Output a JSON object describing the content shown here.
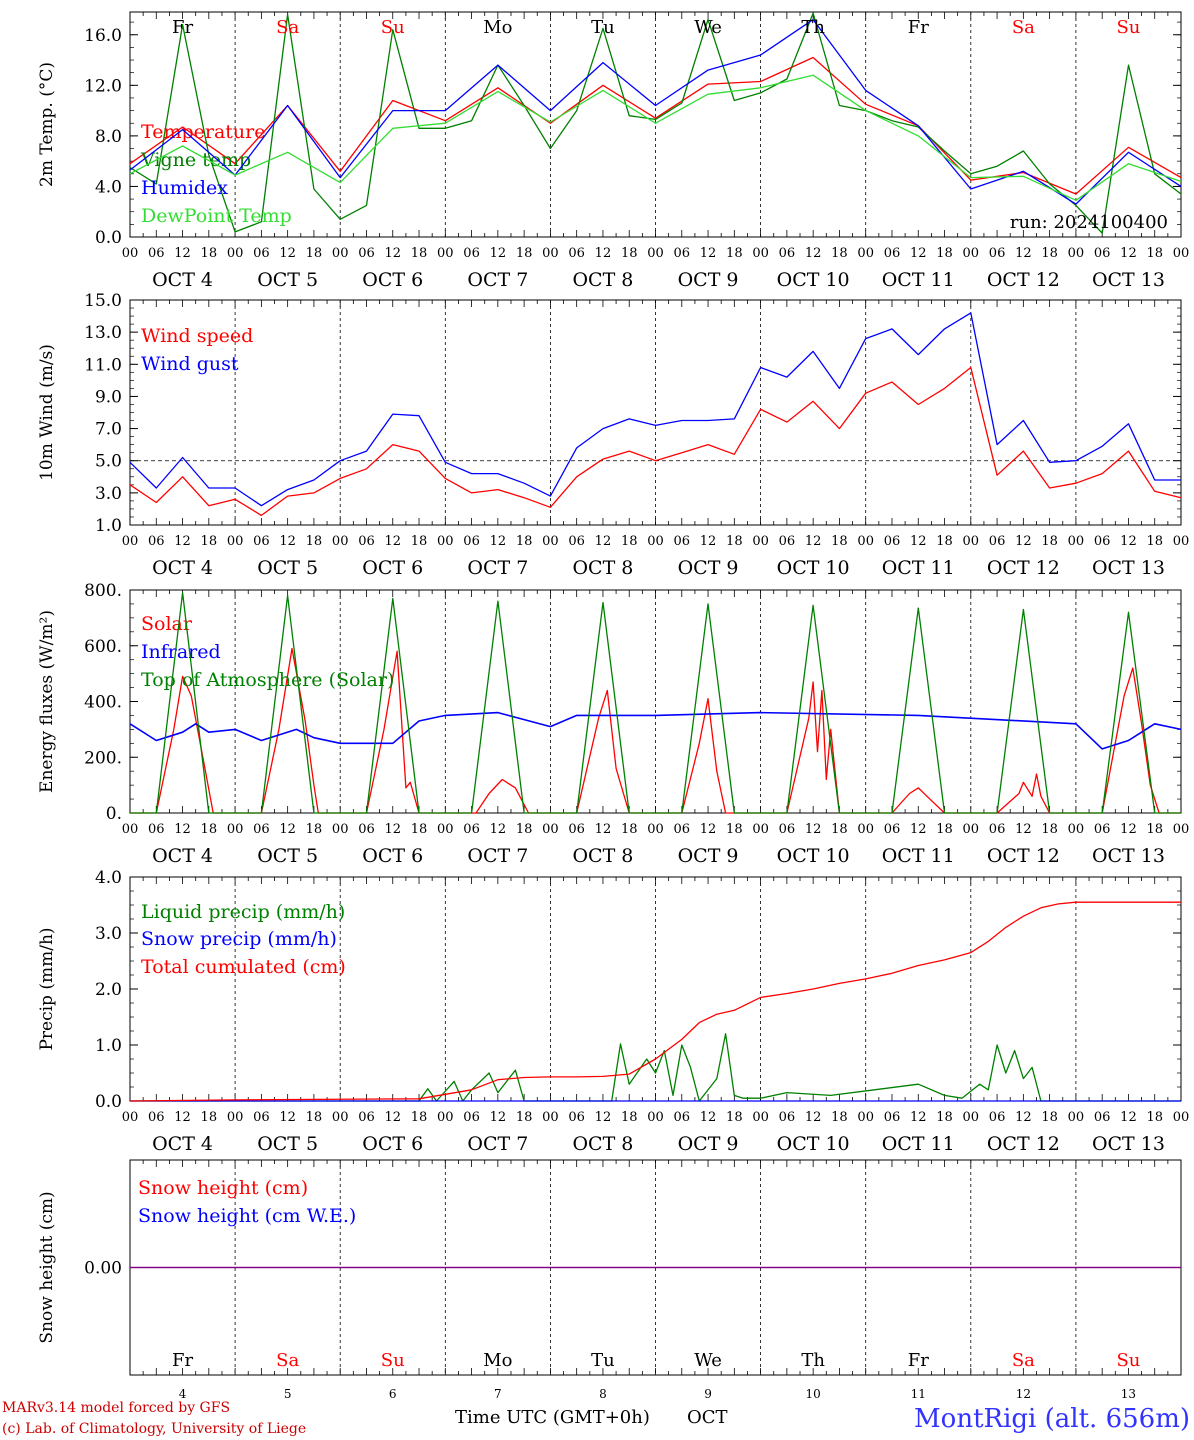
{
  "colors": {
    "red": "#ff0000",
    "green": "#008000",
    "blue": "#0000ff",
    "lightgreen": "#33dd33",
    "purple": "#800080",
    "black": "#000000",
    "credit": "#cc0000",
    "location": "#3333ff"
  },
  "days": [
    {
      "abbr": "Fr",
      "weekend": false,
      "date": "OCT  4",
      "num": "4"
    },
    {
      "abbr": "Sa",
      "weekend": true,
      "date": "OCT  5",
      "num": "5"
    },
    {
      "abbr": "Su",
      "weekend": true,
      "date": "OCT  6",
      "num": "6"
    },
    {
      "abbr": "Mo",
      "weekend": false,
      "date": "OCT  7",
      "num": "7"
    },
    {
      "abbr": "Tu",
      "weekend": false,
      "date": "OCT  8",
      "num": "8"
    },
    {
      "abbr": "We",
      "weekend": false,
      "date": "OCT  9",
      "num": "9"
    },
    {
      "abbr": "Th",
      "weekend": false,
      "date": "OCT 10",
      "num": "10"
    },
    {
      "abbr": "Fr",
      "weekend": false,
      "date": "OCT 11",
      "num": "11"
    },
    {
      "abbr": "Sa",
      "weekend": true,
      "date": "OCT 12",
      "num": "12"
    },
    {
      "abbr": "Su",
      "weekend": true,
      "date": "OCT 13",
      "num": "13"
    }
  ],
  "hour_ticks": [
    "00",
    "06",
    "12",
    "18"
  ],
  "footer": {
    "credit_line1": "MARv3.14 model forced by GFS",
    "credit_line2": "(c) Lab. of Climatology, University of Liege",
    "xlabel": "Time UTC (GMT+0h)",
    "month": "OCT",
    "location": "MontRigi (alt. 656m)"
  },
  "chart_data": [
    {
      "type": "line",
      "ylabel": "2m Temp. (°C)",
      "ylim": [
        0,
        17.8
      ],
      "yticks": [
        "0.0",
        "4.0",
        "8.0",
        "12.0",
        "16.0"
      ],
      "ytick_values": [
        0,
        4,
        8,
        12,
        16
      ],
      "annotation": "run: 2024100400",
      "series": [
        {
          "name": "Temperature",
          "color": "red",
          "x": [
            0,
            12,
            24,
            36,
            48,
            60,
            72,
            84,
            96,
            108,
            120,
            132,
            144,
            156,
            168,
            180,
            192,
            204,
            216,
            228,
            240
          ],
          "values": [
            5.8,
            8.7,
            5.8,
            10.4,
            5.2,
            10.8,
            9.2,
            11.8,
            9.0,
            12.0,
            9.4,
            12.1,
            12.3,
            14.2,
            10.5,
            8.8,
            4.5,
            5.1,
            3.4,
            7.1,
            4.7
          ]
        },
        {
          "name": "Vigne temp",
          "color": "green",
          "x": [
            0,
            6,
            12,
            18,
            24,
            30,
            36,
            42,
            48,
            54,
            60,
            66,
            72,
            78,
            84,
            90,
            96,
            102,
            108,
            114,
            120,
            126,
            132,
            138,
            144,
            150,
            156,
            162,
            168,
            174,
            180,
            186,
            192,
            198,
            204,
            210,
            216,
            222,
            228,
            234,
            240
          ],
          "values": [
            5.5,
            4.2,
            16.8,
            6.5,
            0.4,
            1.2,
            17.6,
            3.8,
            1.4,
            2.5,
            16.4,
            8.6,
            8.6,
            9.2,
            13.6,
            10.4,
            7.0,
            10.0,
            16.5,
            9.6,
            9.3,
            10.6,
            17.2,
            10.8,
            11.4,
            12.5,
            17.7,
            10.4,
            10.0,
            9.2,
            8.7,
            6.8,
            5.0,
            5.6,
            6.8,
            4.2,
            2.5,
            0.3,
            13.6,
            5.0,
            3.4
          ]
        },
        {
          "name": "Humidex",
          "color": "blue",
          "x": [
            0,
            12,
            24,
            36,
            48,
            60,
            72,
            84,
            96,
            108,
            120,
            132,
            144,
            156,
            168,
            180,
            192,
            204,
            216,
            228,
            240
          ],
          "values": [
            5.3,
            8.5,
            4.9,
            10.4,
            4.7,
            10.0,
            10.0,
            13.6,
            10.0,
            13.8,
            10.4,
            13.2,
            14.4,
            17.2,
            11.6,
            8.8,
            3.8,
            5.2,
            2.6,
            6.7,
            4.0
          ]
        },
        {
          "name": "DewPoint Temp",
          "color": "lightgreen",
          "x": [
            0,
            12,
            24,
            36,
            48,
            60,
            72,
            84,
            96,
            108,
            120,
            132,
            144,
            156,
            168,
            180,
            192,
            204,
            216,
            228,
            240
          ],
          "values": [
            5.0,
            7.2,
            4.9,
            6.7,
            4.3,
            8.6,
            9.0,
            11.5,
            9.1,
            11.6,
            9.0,
            11.3,
            11.8,
            12.8,
            10.0,
            8.0,
            4.7,
            4.8,
            2.9,
            5.8,
            4.4
          ]
        }
      ]
    },
    {
      "type": "line",
      "ylabel": "10m Wind (m/s)",
      "ylim": [
        1.0,
        15.0
      ],
      "yticks": [
        "1.0",
        "3.0",
        "5.0",
        "7.0",
        "9.0",
        "11.0",
        "13.0",
        "15.0"
      ],
      "ytick_values": [
        1,
        3,
        5,
        7,
        9,
        11,
        13,
        15
      ],
      "reference_line": 5.0,
      "series": [
        {
          "name": "Wind speed",
          "color": "red",
          "x": [
            0,
            6,
            12,
            18,
            24,
            30,
            36,
            42,
            48,
            54,
            60,
            66,
            72,
            78,
            84,
            90,
            96,
            102,
            108,
            114,
            120,
            126,
            132,
            138,
            144,
            150,
            156,
            162,
            168,
            174,
            180,
            186,
            192,
            198,
            204,
            210,
            216,
            222,
            228,
            234,
            240
          ],
          "values": [
            3.5,
            2.4,
            4.0,
            2.2,
            2.6,
            1.6,
            2.8,
            3.0,
            3.9,
            4.5,
            6.0,
            5.6,
            3.9,
            3.0,
            3.2,
            2.7,
            2.1,
            4.0,
            5.1,
            5.6,
            5.0,
            5.5,
            6.0,
            5.4,
            8.2,
            7.4,
            8.7,
            7.0,
            9.2,
            9.9,
            8.5,
            9.5,
            10.8,
            4.1,
            5.6,
            3.3,
            3.6,
            4.2,
            5.6,
            3.1,
            2.7
          ]
        },
        {
          "name": "Wind gust",
          "color": "blue",
          "x": [
            0,
            6,
            12,
            18,
            24,
            30,
            36,
            42,
            48,
            54,
            60,
            66,
            72,
            78,
            84,
            90,
            96,
            102,
            108,
            114,
            120,
            126,
            132,
            138,
            144,
            150,
            156,
            162,
            168,
            174,
            180,
            186,
            192,
            198,
            204,
            210,
            216,
            222,
            228,
            234,
            240
          ],
          "values": [
            4.9,
            3.3,
            5.2,
            3.3,
            3.3,
            2.2,
            3.2,
            3.8,
            5.0,
            5.6,
            7.9,
            7.8,
            4.9,
            4.2,
            4.2,
            3.6,
            2.8,
            5.8,
            7.0,
            7.6,
            7.2,
            7.5,
            7.5,
            7.6,
            10.8,
            10.2,
            11.8,
            9.5,
            12.6,
            13.2,
            11.6,
            13.2,
            14.2,
            6.0,
            7.5,
            4.9,
            5.0,
            5.9,
            7.3,
            3.8,
            3.8
          ]
        }
      ]
    },
    {
      "type": "line",
      "ylabel": "Energy fluxes (W/m²)",
      "ylim": [
        0,
        800
      ],
      "yticks": [
        "0.",
        "200.",
        "400.",
        "600.",
        "800."
      ],
      "ytick_values": [
        0,
        200,
        400,
        600,
        800
      ],
      "series": [
        {
          "name": "Solar",
          "color": "red",
          "x": [
            0,
            6,
            10,
            12,
            14,
            17,
            19,
            24,
            30,
            34,
            37,
            40,
            42,
            43,
            48,
            54,
            58,
            61,
            63,
            64,
            66,
            72,
            79,
            82,
            85,
            88,
            91,
            96,
            102,
            107,
            109,
            111,
            114,
            120,
            126,
            130,
            132,
            134,
            136,
            144,
            150,
            155,
            156,
            157,
            158,
            159,
            160,
            162,
            168,
            174,
            178,
            180,
            182,
            186,
            192,
            198,
            203,
            204,
            206,
            207,
            208,
            210,
            216,
            222,
            227,
            229,
            231,
            233,
            235,
            240
          ],
          "values": [
            0,
            0,
            300,
            490,
            420,
            170,
            0,
            0,
            0,
            300,
            590,
            330,
            100,
            0,
            0,
            0,
            300,
            580,
            90,
            110,
            0,
            0,
            0,
            70,
            120,
            90,
            0,
            0,
            0,
            340,
            440,
            160,
            0,
            0,
            0,
            250,
            410,
            150,
            0,
            0,
            0,
            340,
            470,
            220,
            440,
            120,
            300,
            0,
            0,
            0,
            70,
            90,
            60,
            0,
            0,
            0,
            70,
            110,
            60,
            140,
            60,
            0,
            0,
            0,
            420,
            520,
            320,
            100,
            0,
            0
          ]
        },
        {
          "name": "Infrared",
          "color": "blue",
          "x": [
            0,
            6,
            12,
            15,
            18,
            24,
            30,
            38,
            42,
            48,
            60,
            66,
            72,
            84,
            96,
            102,
            120,
            144,
            180,
            216,
            222,
            228,
            234,
            240
          ],
          "values": [
            320,
            260,
            290,
            320,
            290,
            300,
            260,
            300,
            270,
            250,
            250,
            330,
            350,
            360,
            310,
            350,
            350,
            360,
            350,
            320,
            230,
            260,
            320,
            300
          ]
        },
        {
          "name": "Top of Atmosphere (Solar)",
          "color": "green",
          "x": [
            0,
            6,
            12,
            18,
            24,
            30,
            36,
            42,
            48,
            54,
            60,
            66,
            72,
            78,
            84,
            90,
            96,
            102,
            108,
            114,
            120,
            126,
            132,
            138,
            144,
            150,
            156,
            162,
            168,
            174,
            180,
            186,
            192,
            198,
            204,
            210,
            216,
            222,
            228,
            234,
            240
          ],
          "values": [
            0,
            0,
            790,
            0,
            0,
            0,
            780,
            0,
            0,
            0,
            770,
            0,
            0,
            0,
            760,
            0,
            0,
            0,
            755,
            0,
            0,
            0,
            750,
            0,
            0,
            0,
            745,
            0,
            0,
            0,
            735,
            0,
            0,
            0,
            730,
            0,
            0,
            0,
            720,
            0,
            0
          ]
        }
      ]
    },
    {
      "type": "line",
      "ylabel": "Precip (mm/h)",
      "ylim": [
        0,
        4.0
      ],
      "yticks": [
        "0.0",
        "1.0",
        "2.0",
        "3.0",
        "4.0"
      ],
      "ytick_values": [
        0,
        1,
        2,
        3,
        4
      ],
      "series": [
        {
          "name": "Liquid precip (mm/h)",
          "color": "green",
          "x": [
            0,
            66,
            68,
            70,
            74,
            76,
            78,
            82,
            84,
            88,
            90,
            92,
            96,
            110,
            112,
            114,
            118,
            120,
            122,
            124,
            126,
            128,
            130,
            134,
            136,
            138,
            140,
            144,
            150,
            160,
            170,
            180,
            186,
            190,
            194,
            196,
            198,
            200,
            202,
            204,
            206,
            208,
            210,
            240
          ],
          "values": [
            0,
            0,
            0.22,
            0,
            0.35,
            0,
            0.2,
            0.5,
            0.15,
            0.55,
            0,
            0,
            0,
            0,
            1.02,
            0.3,
            0.75,
            0.5,
            0.9,
            0.1,
            1.0,
            0.6,
            0,
            0.4,
            1.2,
            0.1,
            0.05,
            0.05,
            0.15,
            0.1,
            0.2,
            0.3,
            0.1,
            0.05,
            0.3,
            0.2,
            1.0,
            0.5,
            0.9,
            0.4,
            0.6,
            0,
            0,
            0
          ]
        },
        {
          "name": "Snow precip (mm/h)",
          "color": "blue",
          "x": [
            0,
            240
          ],
          "values": [
            0,
            0
          ]
        },
        {
          "name": "Total cumulated (cm)",
          "color": "red",
          "x": [
            0,
            24,
            66,
            72,
            78,
            84,
            90,
            96,
            102,
            108,
            114,
            120,
            126,
            130,
            134,
            138,
            144,
            150,
            156,
            162,
            168,
            174,
            180,
            186,
            192,
            196,
            200,
            204,
            208,
            212,
            216,
            240
          ],
          "values": [
            0,
            0.02,
            0.04,
            0.12,
            0.2,
            0.38,
            0.42,
            0.43,
            0.43,
            0.44,
            0.48,
            0.75,
            1.1,
            1.4,
            1.55,
            1.62,
            1.85,
            1.92,
            2.0,
            2.1,
            2.18,
            2.28,
            2.42,
            2.52,
            2.65,
            2.85,
            3.1,
            3.3,
            3.45,
            3.52,
            3.55,
            3.55
          ]
        }
      ]
    },
    {
      "type": "line",
      "ylabel": "Snow height (cm)",
      "ylim": [
        -1,
        1
      ],
      "yticks": [
        "0.00"
      ],
      "ytick_values": [
        0
      ],
      "series": [
        {
          "name": "Snow height (cm)",
          "color": "red",
          "x": [
            0,
            240
          ],
          "values": [
            0,
            0
          ]
        },
        {
          "name": "Snow height (cm W.E.)",
          "color": "blue",
          "x": [
            0,
            240
          ],
          "values": [
            0,
            0
          ]
        }
      ]
    }
  ]
}
